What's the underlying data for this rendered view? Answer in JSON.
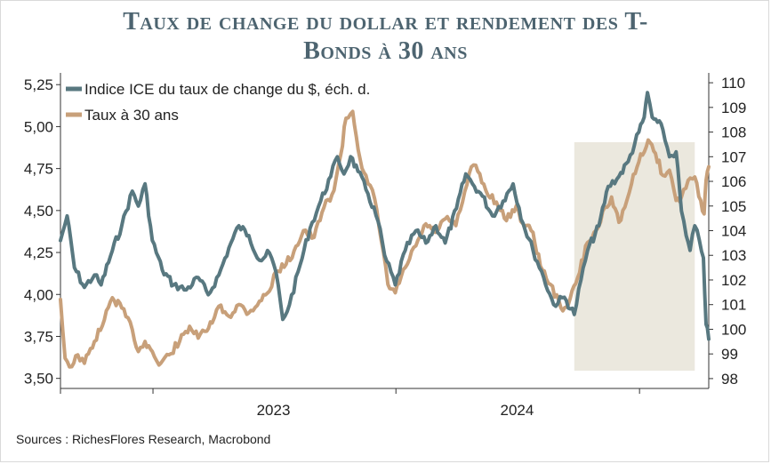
{
  "title": "Taux de change du dollar et rendement des T-Bonds à 30 ans",
  "source": "Sources : RichesFlores Research, Macrobond",
  "colors": {
    "dollar": "#587880",
    "taux": "#c8a07a",
    "shade": "#ebe8de"
  },
  "chart_data": {
    "type": "line",
    "x_range": [
      "2022-08-15",
      "2025-04-15"
    ],
    "x_categories": [
      "2023",
      "2024"
    ],
    "left_axis": {
      "ticks": [
        "3,50",
        "3,75",
        "4,00",
        "4,25",
        "4,50",
        "4,75",
        "5,00",
        "5,25"
      ],
      "min": 3.44,
      "max": 5.32
    },
    "right_axis": {
      "ticks": [
        "98",
        "99",
        "100",
        "101",
        "102",
        "103",
        "104",
        "105",
        "106",
        "107",
        "108",
        "109",
        "110"
      ],
      "min": 97.6,
      "max": 110.4
    },
    "shaded_period": [
      "2024-09-25",
      "2025-03-25"
    ],
    "series": [
      {
        "name": "Indice ICE du taux de change du $, éch. d.",
        "axis": "right",
        "points": [
          [
            "2022-08-15",
            103.6
          ],
          [
            "2022-08-25",
            104.6
          ],
          [
            "2022-09-05",
            102.5
          ],
          [
            "2022-09-20",
            101.7
          ],
          [
            "2022-10-05",
            102.2
          ],
          [
            "2022-10-15",
            101.8
          ],
          [
            "2022-11-01",
            103.2
          ],
          [
            "2022-11-15",
            104.2
          ],
          [
            "2022-12-01",
            105.6
          ],
          [
            "2022-12-10",
            105.0
          ],
          [
            "2022-12-20",
            105.9
          ],
          [
            "2022-12-31",
            103.6
          ],
          [
            "2023-01-15",
            102.4
          ],
          [
            "2023-02-01",
            101.8
          ],
          [
            "2023-02-20",
            101.6
          ],
          [
            "2023-03-10",
            102.1
          ],
          [
            "2023-03-25",
            101.4
          ],
          [
            "2023-04-10",
            102.2
          ],
          [
            "2023-04-25",
            103.3
          ],
          [
            "2023-05-10",
            104.2
          ],
          [
            "2023-05-25",
            103.8
          ],
          [
            "2023-06-10",
            102.8
          ],
          [
            "2023-06-25",
            103.1
          ],
          [
            "2023-07-05",
            102.3
          ],
          [
            "2023-07-15",
            100.4
          ],
          [
            "2023-07-25",
            101.0
          ],
          [
            "2023-08-10",
            102.6
          ],
          [
            "2023-08-25",
            104.1
          ],
          [
            "2023-09-10",
            105.2
          ],
          [
            "2023-09-25",
            106.2
          ],
          [
            "2023-10-05",
            107.0
          ],
          [
            "2023-10-15",
            106.3
          ],
          [
            "2023-10-25",
            107.0
          ],
          [
            "2023-11-05",
            106.4
          ],
          [
            "2023-11-20",
            105.5
          ],
          [
            "2023-12-05",
            104.4
          ],
          [
            "2023-12-15",
            103.0
          ],
          [
            "2023-12-31",
            101.8
          ],
          [
            "2024-01-15",
            103.2
          ],
          [
            "2024-01-31",
            104.0
          ],
          [
            "2024-02-15",
            103.5
          ],
          [
            "2024-03-01",
            104.2
          ],
          [
            "2024-03-15",
            103.5
          ],
          [
            "2024-04-01",
            104.9
          ],
          [
            "2024-04-15",
            106.3
          ],
          [
            "2024-04-25",
            105.9
          ],
          [
            "2024-05-10",
            105.4
          ],
          [
            "2024-05-25",
            104.6
          ],
          [
            "2024-06-10",
            105.2
          ],
          [
            "2024-06-25",
            105.9
          ],
          [
            "2024-07-10",
            104.3
          ],
          [
            "2024-07-25",
            103.2
          ],
          [
            "2024-08-10",
            102.1
          ],
          [
            "2024-08-25",
            101.0
          ],
          [
            "2024-09-10",
            101.3
          ],
          [
            "2024-09-25",
            100.6
          ],
          [
            "2024-10-05",
            102.0
          ],
          [
            "2024-10-15",
            103.2
          ],
          [
            "2024-11-01",
            104.2
          ],
          [
            "2024-11-15",
            105.8
          ],
          [
            "2024-12-01",
            106.2
          ],
          [
            "2024-12-15",
            106.8
          ],
          [
            "2024-12-31",
            108.0
          ],
          [
            "2025-01-08",
            108.6
          ],
          [
            "2025-01-13",
            109.6
          ],
          [
            "2025-01-20",
            108.6
          ],
          [
            "2025-01-28",
            108.4
          ],
          [
            "2025-02-05",
            108.1
          ],
          [
            "2025-02-15",
            107.0
          ],
          [
            "2025-02-25",
            107.2
          ],
          [
            "2025-03-05",
            104.8
          ],
          [
            "2025-03-12",
            103.8
          ],
          [
            "2025-03-18",
            103.2
          ],
          [
            "2025-03-25",
            104.2
          ],
          [
            "2025-04-01",
            103.6
          ],
          [
            "2025-04-07",
            102.9
          ],
          [
            "2025-04-11",
            100.2
          ],
          [
            "2025-04-15",
            99.6
          ]
        ]
      },
      {
        "name": "Taux à 30 ans",
        "axis": "left",
        "points": [
          [
            "2022-08-15",
            3.97
          ],
          [
            "2022-08-22",
            3.62
          ],
          [
            "2022-09-01",
            3.57
          ],
          [
            "2022-09-10",
            3.64
          ],
          [
            "2022-09-20",
            3.59
          ],
          [
            "2022-10-05",
            3.72
          ],
          [
            "2022-10-20",
            3.85
          ],
          [
            "2022-11-01",
            3.98
          ],
          [
            "2022-11-15",
            3.92
          ],
          [
            "2022-12-01",
            3.79
          ],
          [
            "2022-12-10",
            3.66
          ],
          [
            "2022-12-20",
            3.72
          ],
          [
            "2022-12-31",
            3.66
          ],
          [
            "2023-01-10",
            3.58
          ],
          [
            "2023-01-25",
            3.64
          ],
          [
            "2023-02-10",
            3.72
          ],
          [
            "2023-02-25",
            3.81
          ],
          [
            "2023-03-10",
            3.74
          ],
          [
            "2023-03-20",
            3.78
          ],
          [
            "2023-03-31",
            3.83
          ],
          [
            "2023-04-10",
            3.93
          ],
          [
            "2023-04-25",
            3.87
          ],
          [
            "2023-05-10",
            3.94
          ],
          [
            "2023-05-25",
            3.89
          ],
          [
            "2023-06-10",
            3.96
          ],
          [
            "2023-06-25",
            4.02
          ],
          [
            "2023-07-05",
            4.14
          ],
          [
            "2023-07-20",
            4.18
          ],
          [
            "2023-08-01",
            4.26
          ],
          [
            "2023-08-15",
            4.38
          ],
          [
            "2023-08-31",
            4.34
          ],
          [
            "2023-09-15",
            4.52
          ],
          [
            "2023-09-30",
            4.62
          ],
          [
            "2023-10-10",
            4.83
          ],
          [
            "2023-10-18",
            5.05
          ],
          [
            "2023-10-28",
            5.09
          ],
          [
            "2023-11-08",
            4.81
          ],
          [
            "2023-11-20",
            4.66
          ],
          [
            "2023-11-30",
            4.57
          ],
          [
            "2023-12-10",
            4.32
          ],
          [
            "2023-12-20",
            4.06
          ],
          [
            "2023-12-31",
            4.01
          ],
          [
            "2024-01-15",
            4.16
          ],
          [
            "2024-01-31",
            4.29
          ],
          [
            "2024-02-15",
            4.42
          ],
          [
            "2024-02-29",
            4.37
          ],
          [
            "2024-03-15",
            4.45
          ],
          [
            "2024-03-31",
            4.41
          ],
          [
            "2024-04-10",
            4.55
          ],
          [
            "2024-04-20",
            4.72
          ],
          [
            "2024-04-30",
            4.77
          ],
          [
            "2024-05-15",
            4.62
          ],
          [
            "2024-05-31",
            4.55
          ],
          [
            "2024-06-15",
            4.44
          ],
          [
            "2024-06-30",
            4.53
          ],
          [
            "2024-07-10",
            4.42
          ],
          [
            "2024-07-25",
            4.37
          ],
          [
            "2024-08-05",
            4.17
          ],
          [
            "2024-08-20",
            4.06
          ],
          [
            "2024-09-05",
            3.92
          ],
          [
            "2024-09-16",
            3.94
          ],
          [
            "2024-09-30",
            4.1
          ],
          [
            "2024-10-15",
            4.31
          ],
          [
            "2024-10-31",
            4.4
          ],
          [
            "2024-11-10",
            4.52
          ],
          [
            "2024-11-20",
            4.58
          ],
          [
            "2024-12-01",
            4.43
          ],
          [
            "2024-12-10",
            4.52
          ],
          [
            "2024-12-20",
            4.66
          ],
          [
            "2024-12-31",
            4.79
          ],
          [
            "2025-01-14",
            4.92
          ],
          [
            "2025-01-25",
            4.84
          ],
          [
            "2025-02-05",
            4.71
          ],
          [
            "2025-02-15",
            4.74
          ],
          [
            "2025-02-25",
            4.56
          ],
          [
            "2025-03-05",
            4.58
          ],
          [
            "2025-03-15",
            4.68
          ],
          [
            "2025-03-25",
            4.7
          ],
          [
            "2025-04-03",
            4.56
          ],
          [
            "2025-04-08",
            4.48
          ],
          [
            "2025-04-11",
            4.68
          ],
          [
            "2025-04-15",
            4.76
          ]
        ]
      }
    ]
  }
}
